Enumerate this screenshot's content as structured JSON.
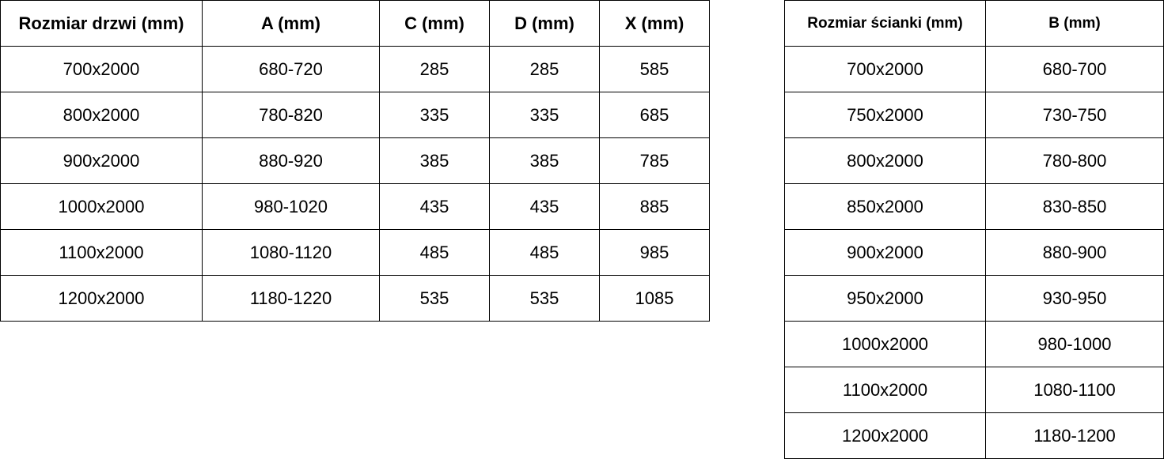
{
  "doors_table": {
    "headers": [
      "Rozmiar drzwi (mm)",
      "A (mm)",
      "C (mm)",
      "D (mm)",
      "X (mm)"
    ],
    "rows": [
      [
        "700x2000",
        "680-720",
        "285",
        "285",
        "585"
      ],
      [
        "800x2000",
        "780-820",
        "335",
        "335",
        "685"
      ],
      [
        "900x2000",
        "880-920",
        "385",
        "385",
        "785"
      ],
      [
        "1000x2000",
        "980-1020",
        "435",
        "435",
        "885"
      ],
      [
        "1100x2000",
        "1080-1120",
        "485",
        "485",
        "985"
      ],
      [
        "1200x2000",
        "1180-1220",
        "535",
        "535",
        "1085"
      ]
    ]
  },
  "wall_table": {
    "headers": [
      "Rozmiar ścianki (mm)",
      "B (mm)"
    ],
    "rows": [
      [
        "700x2000",
        "680-700"
      ],
      [
        "750x2000",
        "730-750"
      ],
      [
        "800x2000",
        "780-800"
      ],
      [
        "850x2000",
        "830-850"
      ],
      [
        "900x2000",
        "880-900"
      ],
      [
        "950x2000",
        "930-950"
      ],
      [
        "1000x2000",
        "980-1000"
      ],
      [
        "1100x2000",
        "1080-1100"
      ],
      [
        "1200x2000",
        "1180-1200"
      ]
    ]
  }
}
